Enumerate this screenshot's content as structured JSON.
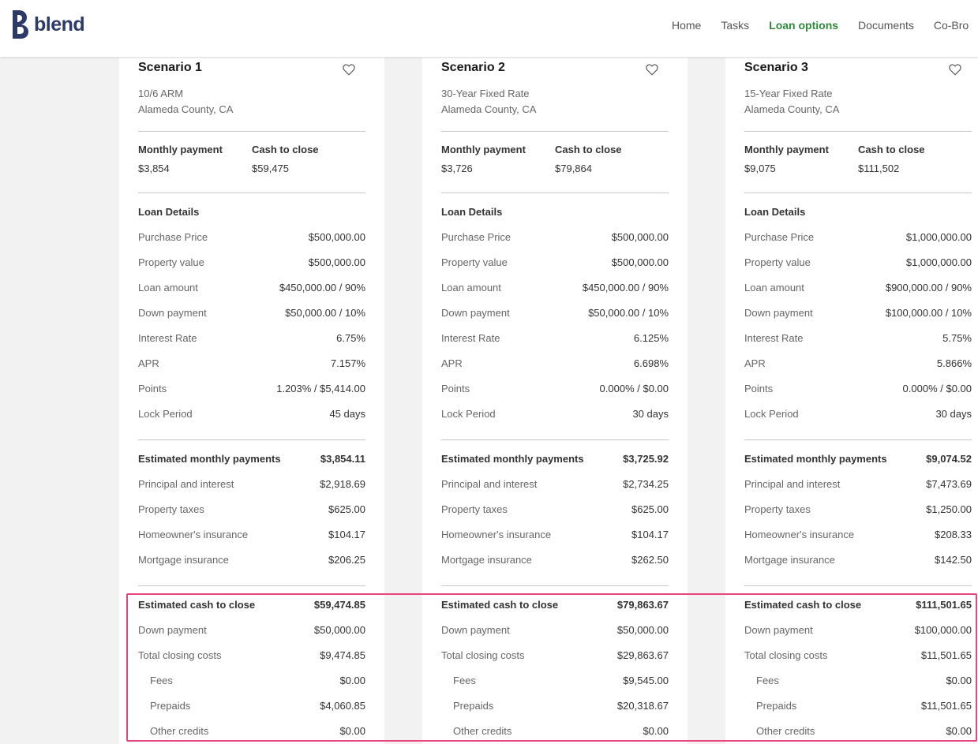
{
  "brand": {
    "name": "blend",
    "color": "#2b3a67"
  },
  "nav": [
    {
      "label": "Home",
      "active": false
    },
    {
      "label": "Tasks",
      "active": false
    },
    {
      "label": "Loan options",
      "active": true
    },
    {
      "label": "Documents",
      "active": false
    },
    {
      "label": "Co-Bro",
      "active": false
    }
  ],
  "labels": {
    "monthly_payment": "Monthly payment",
    "cash_to_close": "Cash to close",
    "loan_details": "Loan Details",
    "purchase_price": "Purchase Price",
    "property_value": "Property value",
    "loan_amount": "Loan amount",
    "down_payment": "Down payment",
    "interest_rate": "Interest Rate",
    "apr": "APR",
    "points": "Points",
    "lock_period": "Lock Period",
    "est_monthly": "Estimated monthly payments",
    "principal_interest": "Principal and interest",
    "property_taxes": "Property taxes",
    "homeowners_insurance": "Homeowner's insurance",
    "mortgage_insurance": "Mortgage insurance",
    "est_cash": "Estimated cash to close",
    "total_closing": "Total closing costs",
    "fees": "Fees",
    "prepaids": "Prepaids",
    "other_credits": "Other credits"
  },
  "scenarios": [
    {
      "title": "Scenario 1",
      "product": "10/6 ARM",
      "location": "Alameda County, CA",
      "monthly_payment": "$3,854",
      "cash_to_close": "$59,475",
      "purchase_price": "$500,000.00",
      "property_value": "$500,000.00",
      "loan_amount": "$450,000.00 / 90%",
      "down_payment": "$50,000.00 / 10%",
      "interest_rate": "6.75%",
      "apr": "7.157%",
      "points": "1.203% / $5,414.00",
      "lock_period": "45 days",
      "est_monthly": "$3,854.11",
      "principal_interest": "$2,918.69",
      "property_taxes": "$625.00",
      "homeowners_insurance": "$104.17",
      "mortgage_insurance": "$206.25",
      "est_cash": "$59,474.85",
      "cash_down_payment": "$50,000.00",
      "total_closing": "$9,474.85",
      "fees": "$0.00",
      "prepaids": "$4,060.85",
      "other_credits": "$0.00"
    },
    {
      "title": "Scenario 2",
      "product": "30-Year Fixed Rate",
      "location": "Alameda County, CA",
      "monthly_payment": "$3,726",
      "cash_to_close": "$79,864",
      "purchase_price": "$500,000.00",
      "property_value": "$500,000.00",
      "loan_amount": "$450,000.00 / 90%",
      "down_payment": "$50,000.00 / 10%",
      "interest_rate": "6.125%",
      "apr": "6.698%",
      "points": "0.000% / $0.00",
      "lock_period": "30 days",
      "est_monthly": "$3,725.92",
      "principal_interest": "$2,734.25",
      "property_taxes": "$625.00",
      "homeowners_insurance": "$104.17",
      "mortgage_insurance": "$262.50",
      "est_cash": "$79,863.67",
      "cash_down_payment": "$50,000.00",
      "total_closing": "$29,863.67",
      "fees": "$9,545.00",
      "prepaids": "$20,318.67",
      "other_credits": "$0.00"
    },
    {
      "title": "Scenario 3",
      "product": "15-Year Fixed Rate",
      "location": "Alameda County, CA",
      "monthly_payment": "$9,075",
      "cash_to_close": "$111,502",
      "purchase_price": "$1,000,000.00",
      "property_value": "$1,000,000.00",
      "loan_amount": "$900,000.00 / 90%",
      "down_payment": "$100,000.00 / 10%",
      "interest_rate": "5.75%",
      "apr": "5.866%",
      "points": "0.000% / $0.00",
      "lock_period": "30 days",
      "est_monthly": "$9,074.52",
      "principal_interest": "$7,473.69",
      "property_taxes": "$1,250.00",
      "homeowners_insurance": "$208.33",
      "mortgage_insurance": "$142.50",
      "est_cash": "$111,501.65",
      "cash_down_payment": "$100,000.00",
      "total_closing": "$11,501.65",
      "fees": "$0.00",
      "prepaids": "$11,501.65",
      "other_credits": "$0.00"
    }
  ],
  "colors": {
    "active_nav": "#2e8b3a",
    "highlight_border": "#e8457a"
  }
}
